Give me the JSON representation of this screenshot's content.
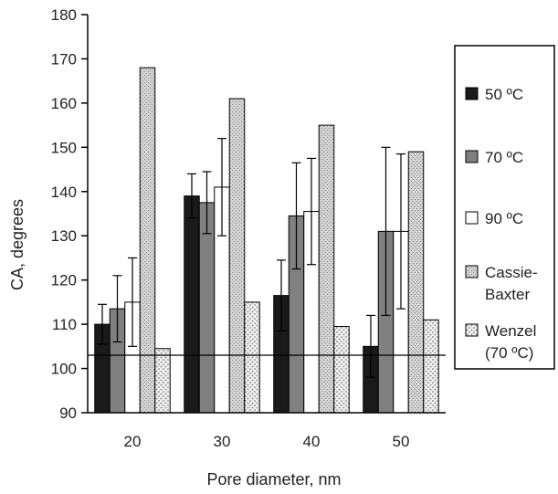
{
  "chart_data": {
    "type": "bar",
    "title": "",
    "xlabel": "Pore diameter, nm",
    "ylabel": "CA, degrees",
    "categories": [
      "20",
      "30",
      "40",
      "50"
    ],
    "ylim": [
      90,
      180
    ],
    "yticks": [
      90,
      100,
      110,
      120,
      130,
      140,
      150,
      160,
      170,
      180
    ],
    "reference_line": 103,
    "grid": false,
    "legend_position": "right",
    "series": [
      {
        "name": "50 °C",
        "values": [
          110,
          139,
          116.5,
          105
        ],
        "error": [
          4.5,
          5,
          8,
          7
        ],
        "color": "#1a1a1a",
        "pattern": "solid"
      },
      {
        "name": "70 °C",
        "values": [
          113.5,
          137.5,
          134.5,
          131
        ],
        "error": [
          7.5,
          7,
          12,
          19
        ],
        "color": "#808080",
        "pattern": "solid"
      },
      {
        "name": "90 °C",
        "values": [
          115,
          141,
          135.5,
          131
        ],
        "error": [
          10,
          11,
          12,
          17.5
        ],
        "color": "#ffffff",
        "pattern": "solid"
      },
      {
        "name": "Cassie-Baxter",
        "values": [
          168,
          161,
          155,
          149
        ],
        "error": null,
        "color": "#c8c8c8",
        "pattern": "stipple"
      },
      {
        "name": "Wenzel (70 °C)",
        "values": [
          104.5,
          115,
          109.5,
          111
        ],
        "error": null,
        "color": "#e6e6e6",
        "pattern": "dots"
      }
    ],
    "legend_entries": [
      "50 ºC",
      "70 ºC",
      "90 ºC",
      "Cassie-",
      "Baxter",
      "Wenzel",
      "(70 ºC)"
    ]
  }
}
